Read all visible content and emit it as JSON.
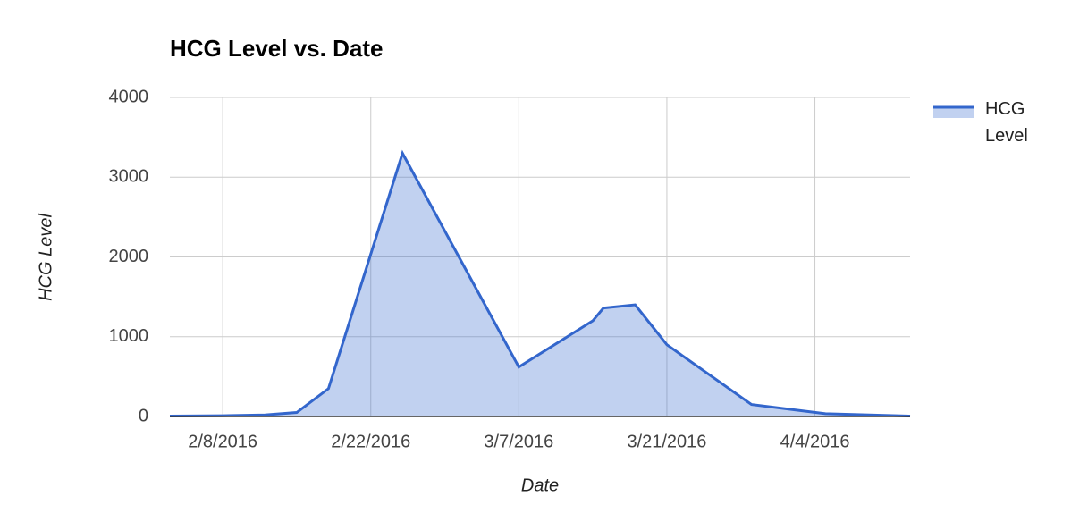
{
  "chart_data": {
    "type": "area",
    "title": "HCG Level vs. Date",
    "x_label": "Date",
    "y_label": "HCG Level",
    "x": [
      "2/3/2016",
      "2/8/2016",
      "2/12/2016",
      "2/15/2016",
      "2/18/2016",
      "2/25/2016",
      "3/7/2016",
      "3/14/2016",
      "3/15/2016",
      "3/18/2016",
      "3/21/2016",
      "3/29/2016",
      "4/5/2016",
      "4/13/2016"
    ],
    "series": [
      {
        "name": "HCG Level",
        "color": "#3366cc",
        "values": [
          5,
          10,
          20,
          50,
          350,
          3300,
          620,
          1200,
          1360,
          1400,
          900,
          150,
          35,
          5
        ]
      }
    ],
    "xlim": [
      "2/3/2016",
      "4/13/2016"
    ],
    "xticks": [
      "2/8/2016",
      "2/22/2016",
      "3/7/2016",
      "3/21/2016",
      "4/4/2016"
    ],
    "ylim": [
      0,
      4000
    ],
    "yticks": [
      0,
      1000,
      2000,
      3000,
      4000
    ],
    "grid": true,
    "legend": "right"
  }
}
